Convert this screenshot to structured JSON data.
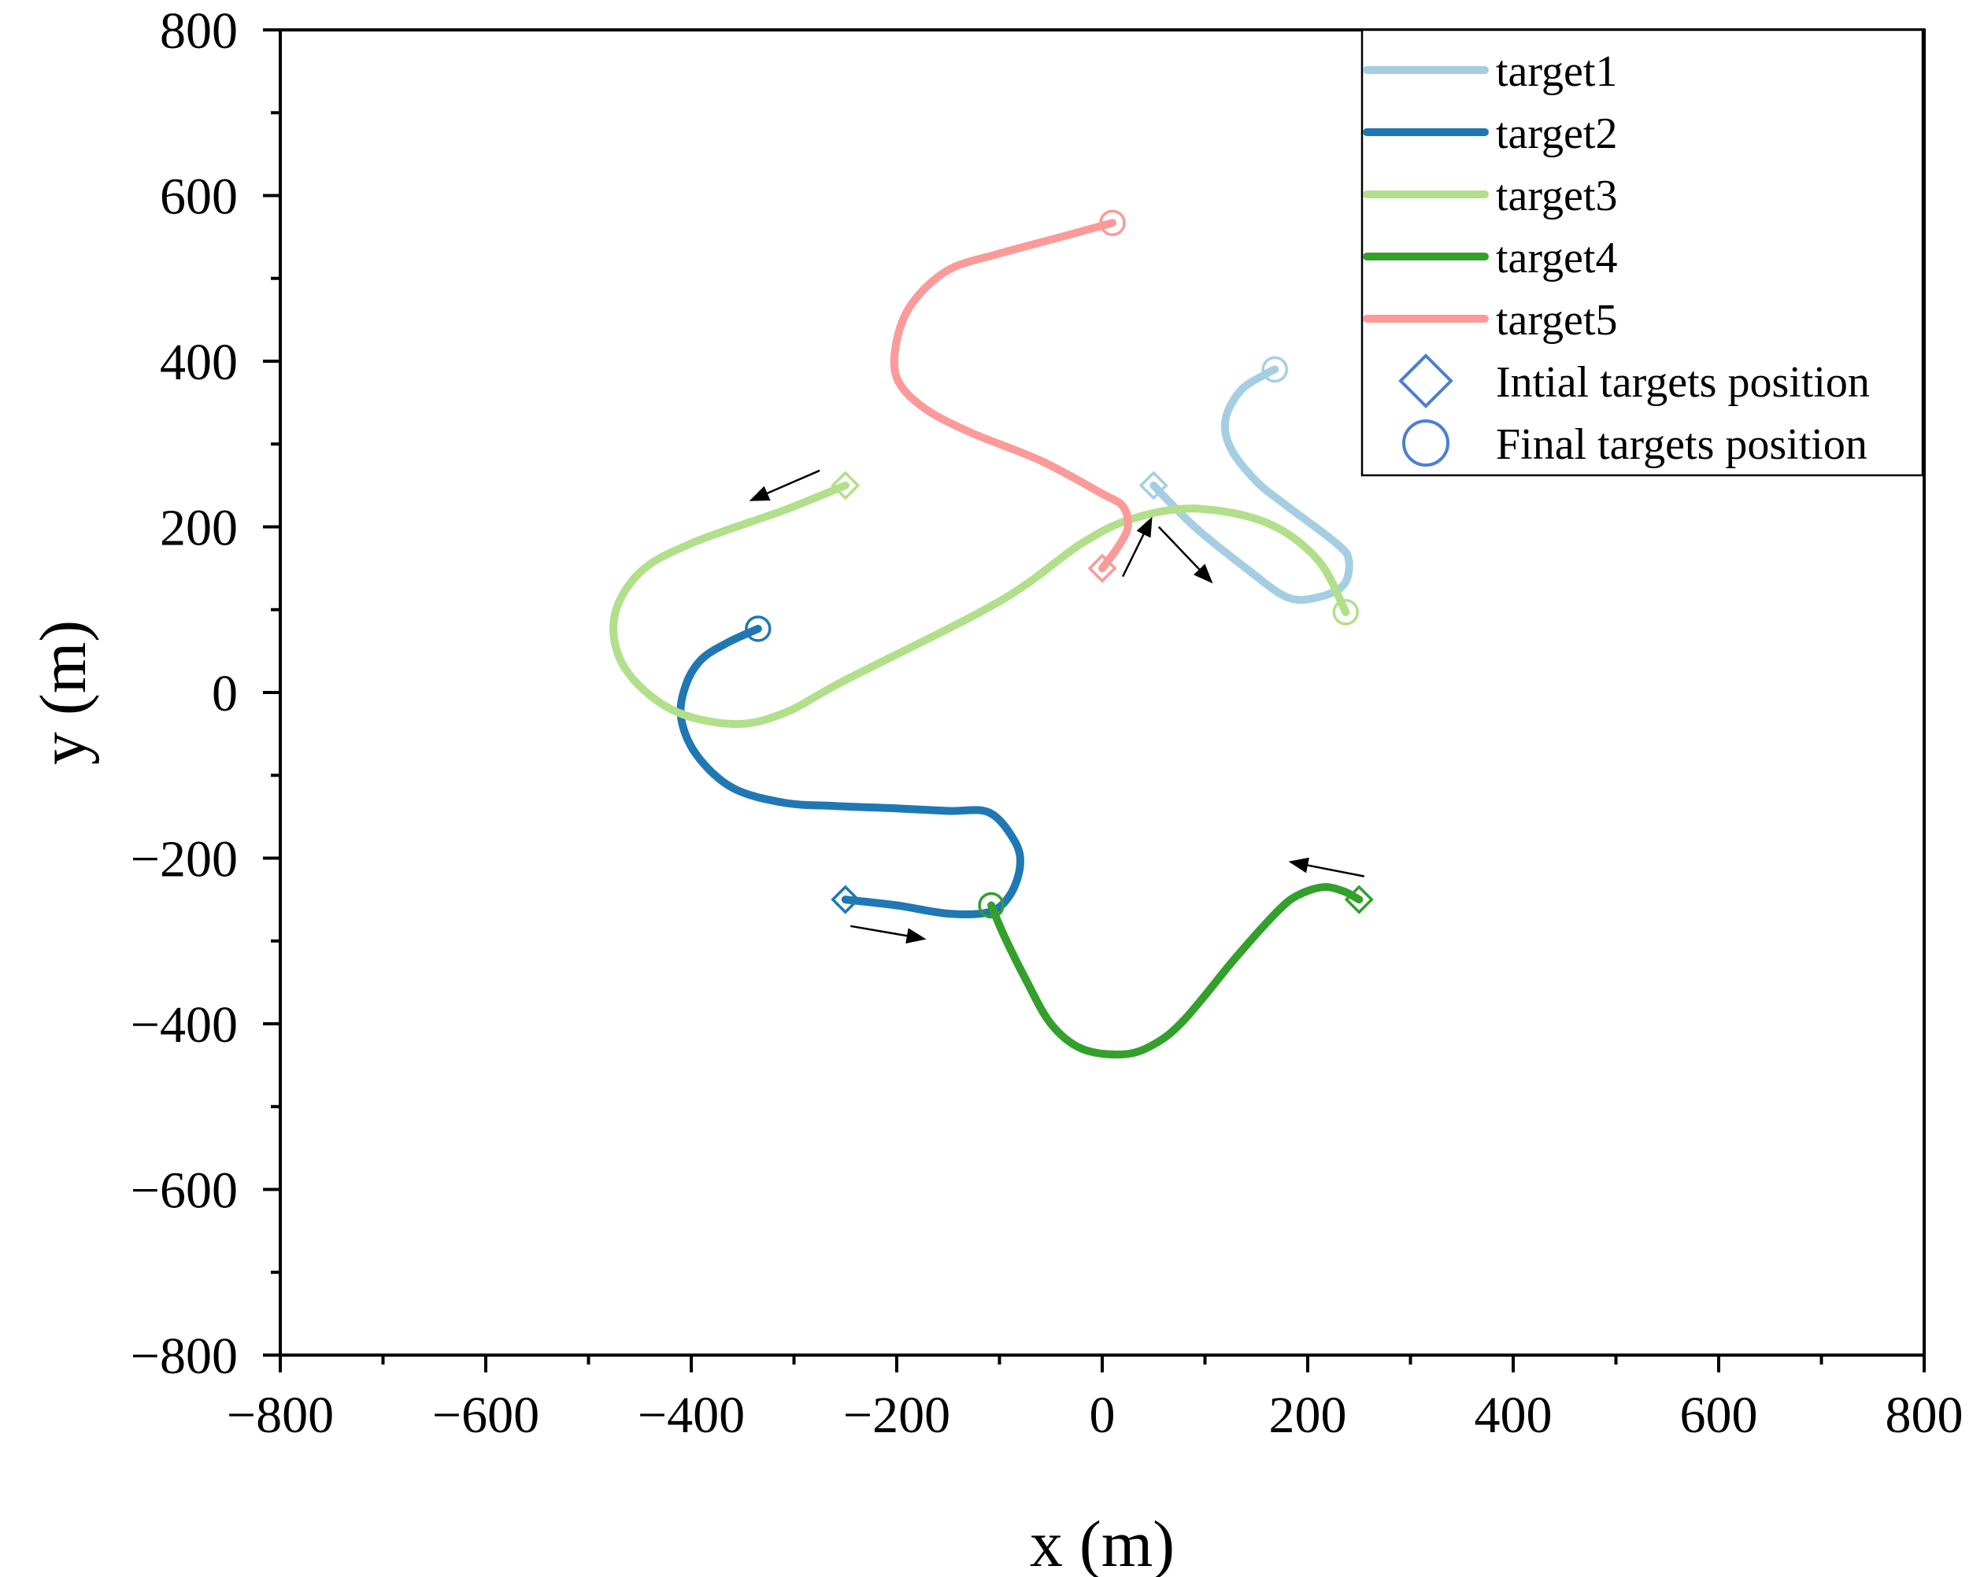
{
  "chart_data": {
    "type": "line",
    "xlabel": "x (m)",
    "ylabel": "y (m)",
    "xlim": [
      -800,
      800
    ],
    "ylim": [
      -800,
      800
    ],
    "x_ticks": [
      -800,
      -600,
      -400,
      -200,
      0,
      200,
      400,
      600,
      800
    ],
    "y_ticks": [
      -800,
      -600,
      -400,
      -200,
      0,
      200,
      400,
      600,
      800
    ],
    "x_tick_labels": [
      "−800",
      "−600",
      "−400",
      "−200",
      "0",
      "200",
      "400",
      "600",
      "800"
    ],
    "y_tick_labels": [
      "−800",
      "−600",
      "−400",
      "−200",
      "0",
      "200",
      "400",
      "600",
      "800"
    ],
    "legend_position": "top-right",
    "series": [
      {
        "name": "target1",
        "color": "#a6cee3",
        "x": [
          50,
          90,
          140,
          180,
          210,
          235,
          240,
          228,
          180,
          150,
          125,
          120,
          135,
          160,
          168
        ],
        "y": [
          250,
          200,
          150,
          115,
          115,
          130,
          160,
          180,
          225,
          255,
          295,
          330,
          365,
          385,
          390
        ]
      },
      {
        "name": "target2",
        "color": "#1f78b4",
        "x": [
          -250,
          -200,
          -150,
          -110,
          -90,
          -80,
          -85,
          -110,
          -150,
          -200,
          -260,
          -310,
          -360,
          -395,
          -410,
          -405,
          -390,
          -365,
          -335
        ],
        "y": [
          -250,
          -257,
          -267,
          -265,
          -245,
          -210,
          -180,
          -145,
          -143,
          -140,
          -137,
          -133,
          -115,
          -75,
          -30,
          10,
          40,
          60,
          77
        ]
      },
      {
        "name": "target3",
        "color": "#b2df8a",
        "x": [
          -250,
          -310,
          -400,
          -450,
          -475,
          -465,
          -420,
          -360,
          -310,
          -250,
          -100,
          -20,
          30,
          90,
          160,
          210,
          237
        ],
        "y": [
          250,
          220,
          180,
          145,
          90,
          30,
          -20,
          -38,
          -25,
          15,
          110,
          180,
          210,
          222,
          205,
          160,
          97
        ]
      },
      {
        "name": "target4",
        "color": "#33a02c",
        "x": [
          250,
          235,
          215,
          190,
          170,
          130,
          80,
          50,
          20,
          -20,
          -50,
          -75,
          -95,
          -108
        ],
        "y": [
          -250,
          -240,
          -235,
          -245,
          -265,
          -320,
          -395,
          -425,
          -437,
          -430,
          -400,
          -345,
          -295,
          -257
        ]
      },
      {
        "name": "target5",
        "color": "#fb9a99",
        "x": [
          0,
          15,
          25,
          20,
          0,
          -60,
          -130,
          -175,
          -200,
          -200,
          -185,
          -150,
          -100,
          -40,
          10
        ],
        "y": [
          150,
          175,
          200,
          225,
          240,
          280,
          315,
          345,
          380,
          425,
          470,
          510,
          530,
          550,
          567
        ]
      }
    ],
    "markers": [
      {
        "name": "Intial targets position",
        "shape": "diamond"
      },
      {
        "name": "Final targets position",
        "shape": "circle"
      }
    ],
    "direction_arrows": [
      {
        "target": "target1",
        "from": [
          55,
          200
        ],
        "to": [
          105,
          135
        ]
      },
      {
        "target": "target2",
        "from": [
          -245,
          -282
        ],
        "to": [
          -175,
          -297
        ]
      },
      {
        "target": "target3",
        "from": [
          -275,
          268
        ],
        "to": [
          -340,
          233
        ]
      },
      {
        "target": "target4",
        "from": [
          255,
          -222
        ],
        "to": [
          185,
          -205
        ]
      },
      {
        "target": "target5",
        "from": [
          20,
          140
        ],
        "to": [
          47,
          208
        ]
      }
    ],
    "legend_color_marker": "#4a7fd4",
    "grid": false
  }
}
